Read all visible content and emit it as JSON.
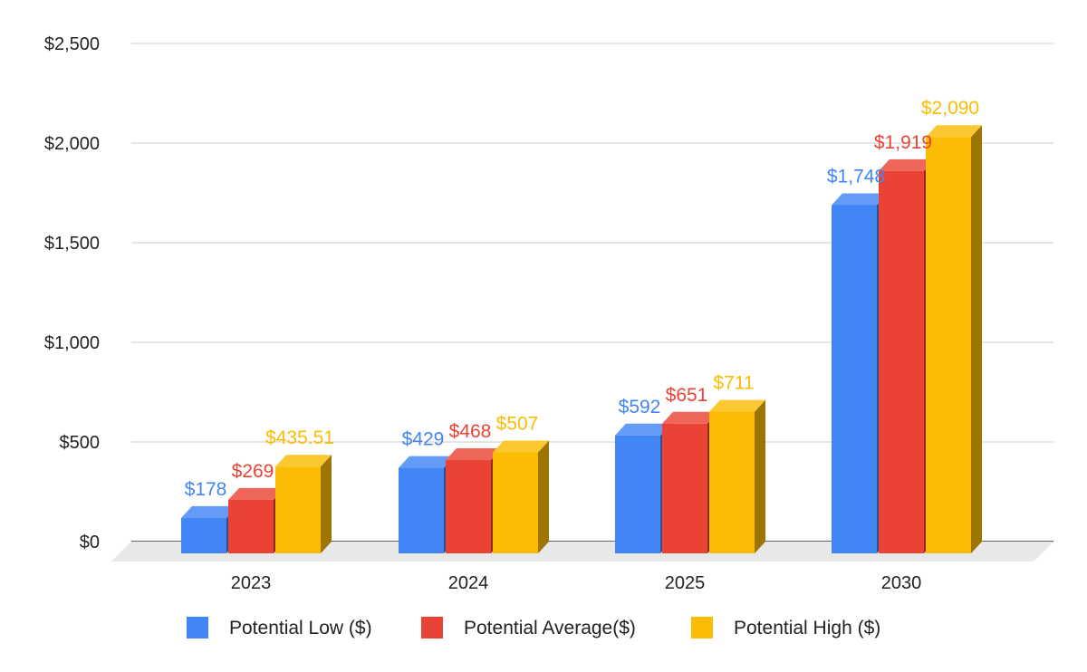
{
  "chart_data": {
    "type": "bar",
    "categories": [
      "2023",
      "2024",
      "2025",
      "2030"
    ],
    "series": [
      {
        "name": "Potential Low ($)",
        "color": "#4285f4",
        "values": [
          178,
          429,
          592,
          1748
        ],
        "labels": [
          "$178",
          "$429",
          "$592",
          "$1,748"
        ]
      },
      {
        "name": "Potential Average($)",
        "color": "#ea4335",
        "values": [
          269,
          468,
          651,
          1919
        ],
        "labels": [
          "$269",
          "$468",
          "$651",
          "$1,919"
        ]
      },
      {
        "name": "Potential High ($)",
        "color": "#fbbc04",
        "values": [
          435.51,
          507,
          711,
          2090
        ],
        "labels": [
          "$435.51",
          "$507",
          "$711",
          "$2,090"
        ]
      }
    ],
    "yticks": [
      0,
      500,
      1000,
      1500,
      2000,
      2500
    ],
    "ytick_labels": [
      "$0",
      "$500",
      "$1,000",
      "$1,500",
      "$2,000",
      "$2,500"
    ],
    "ylim": [
      0,
      2500
    ],
    "legend_position": "bottom",
    "gridlines": true,
    "style": "3d"
  }
}
